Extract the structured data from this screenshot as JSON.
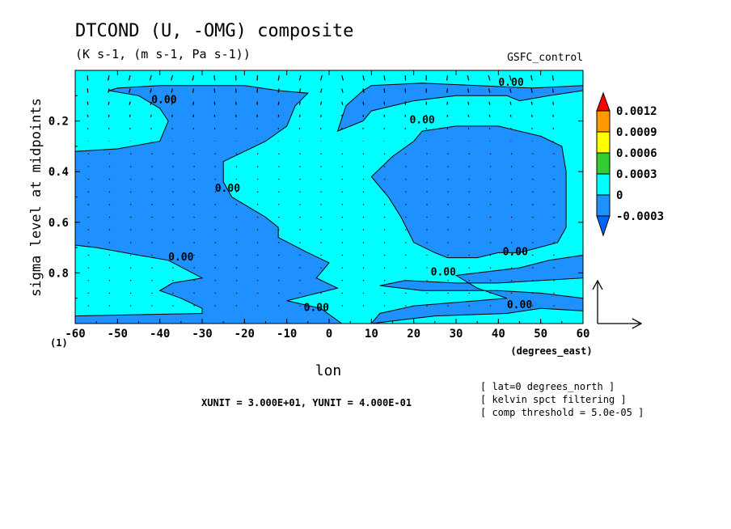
{
  "chart_data": {
    "type": "contour",
    "title": "DTCOND (U, -OMG) composite",
    "subtitle": "(K s-1, (m s-1, Pa s-1))",
    "experiment": "GSFC_control",
    "xlabel": "lon",
    "ylabel": "sigma level at midpoints",
    "x_units": "(degrees_east)",
    "frame_index": "(1)",
    "xlim": [
      -60,
      60
    ],
    "ylim": [
      1.0,
      0.0
    ],
    "x_ticks": [
      -60,
      -50,
      -40,
      -30,
      -20,
      -10,
      0,
      10,
      20,
      30,
      40,
      50,
      60
    ],
    "x_tick_labels": [
      "-60",
      "-50",
      "-40",
      "-30",
      "-20",
      "-10",
      "0",
      "10",
      "20",
      "30",
      "40",
      "50",
      "60"
    ],
    "y_ticks": [
      0.2,
      0.4,
      0.6,
      0.8
    ],
    "y_tick_labels": [
      "0.2",
      "0.4",
      "0.6",
      "0.8"
    ],
    "contour_label": "0.00",
    "vector_unit_note": "XUNIT = 3.000E+01, YUNIT = 4.000E-01",
    "notes": [
      "[ lat=0 degrees_north ]",
      "[ kelvin spct filtering ]",
      "[ comp threshold = 5.0e-05 ]"
    ],
    "colorbar": {
      "levels": [
        "0.0012",
        "0.0009",
        "0.0006",
        "0.0003",
        "0",
        "-0.0003"
      ],
      "colors": [
        "#ff0000",
        "#ff9900",
        "#ffff00",
        "#33cc33",
        "#00ffff",
        "#1e90ff"
      ],
      "top_arrow_color": "#ff0000",
      "bottom_arrow_color": "#0066ff"
    },
    "fill_colors": {
      "positive": "#00ffff",
      "negative": "#1e90ff"
    },
    "regions_negative": [
      [
        [
          -50,
          0.07
        ],
        [
          -40,
          0.06
        ],
        [
          -20,
          0.06
        ],
        [
          -12,
          0.08
        ],
        [
          -5,
          0.09
        ],
        [
          -8,
          0.14
        ],
        [
          -10,
          0.22
        ],
        [
          -15,
          0.28
        ],
        [
          -20,
          0.32
        ],
        [
          -25,
          0.36
        ],
        [
          -25,
          0.44
        ],
        [
          -23,
          0.5
        ],
        [
          -15,
          0.58
        ],
        [
          -12,
          0.62
        ],
        [
          -12,
          0.66
        ],
        [
          -5,
          0.72
        ],
        [
          0,
          0.76
        ],
        [
          -3,
          0.82
        ],
        [
          2,
          0.86
        ],
        [
          -10,
          0.91
        ],
        [
          -2,
          0.94
        ],
        [
          3,
          1.0
        ],
        [
          -60,
          1.0
        ],
        [
          -60,
          0.97
        ],
        [
          -30,
          0.96
        ],
        [
          -30,
          0.94
        ],
        [
          -35,
          0.9
        ],
        [
          -40,
          0.87
        ],
        [
          -37,
          0.84
        ],
        [
          -30,
          0.82
        ],
        [
          -38,
          0.75
        ],
        [
          -45,
          0.73
        ],
        [
          -55,
          0.7
        ],
        [
          -60,
          0.69
        ],
        [
          -60,
          0.32
        ],
        [
          -50,
          0.31
        ],
        [
          -40,
          0.28
        ],
        [
          -38,
          0.2
        ],
        [
          -40,
          0.15
        ],
        [
          -45,
          0.1
        ],
        [
          -52,
          0.08
        ]
      ],
      [
        [
          10,
          0.06
        ],
        [
          22,
          0.05
        ],
        [
          35,
          0.06
        ],
        [
          48,
          0.07
        ],
        [
          60,
          0.06
        ],
        [
          60,
          0.08
        ],
        [
          52,
          0.1
        ],
        [
          45,
          0.12
        ],
        [
          42,
          0.1
        ],
        [
          30,
          0.1
        ],
        [
          20,
          0.12
        ],
        [
          10,
          0.16
        ],
        [
          8,
          0.2
        ],
        [
          2,
          0.24
        ],
        [
          4,
          0.14
        ],
        [
          8,
          0.08
        ]
      ],
      [
        [
          22,
          0.24
        ],
        [
          30,
          0.22
        ],
        [
          40,
          0.22
        ],
        [
          50,
          0.26
        ],
        [
          55,
          0.3
        ],
        [
          56,
          0.4
        ],
        [
          56,
          0.52
        ],
        [
          56,
          0.62
        ],
        [
          54,
          0.68
        ],
        [
          45,
          0.72
        ],
        [
          40,
          0.72
        ],
        [
          35,
          0.74
        ],
        [
          28,
          0.74
        ],
        [
          25,
          0.72
        ],
        [
          20,
          0.68
        ],
        [
          17,
          0.58
        ],
        [
          14,
          0.5
        ],
        [
          10,
          0.42
        ],
        [
          15,
          0.34
        ],
        [
          20,
          0.28
        ]
      ],
      [
        [
          60,
          0.73
        ],
        [
          60,
          0.82
        ],
        [
          40,
          0.84
        ],
        [
          30,
          0.84
        ],
        [
          18,
          0.83
        ],
        [
          12,
          0.85
        ],
        [
          22,
          0.87
        ],
        [
          40,
          0.87
        ],
        [
          50,
          0.88
        ],
        [
          60,
          0.9
        ],
        [
          60,
          0.95
        ],
        [
          50,
          0.94
        ],
        [
          42,
          0.96
        ],
        [
          25,
          0.97
        ],
        [
          10,
          1.0
        ],
        [
          12,
          0.96
        ],
        [
          20,
          0.93
        ],
        [
          35,
          0.91
        ],
        [
          42,
          0.9
        ],
        [
          35,
          0.86
        ],
        [
          30,
          0.81
        ],
        [
          45,
          0.78
        ],
        [
          52,
          0.75
        ]
      ]
    ],
    "contour_label_positions": [
      [
        -39,
        0.13
      ],
      [
        -24,
        0.48
      ],
      [
        -35,
        0.75
      ],
      [
        22,
        0.21
      ],
      [
        43,
        0.06
      ],
      [
        44,
        0.73
      ],
      [
        27,
        0.81
      ],
      [
        -3,
        0.95
      ],
      [
        45,
        0.94
      ]
    ]
  }
}
